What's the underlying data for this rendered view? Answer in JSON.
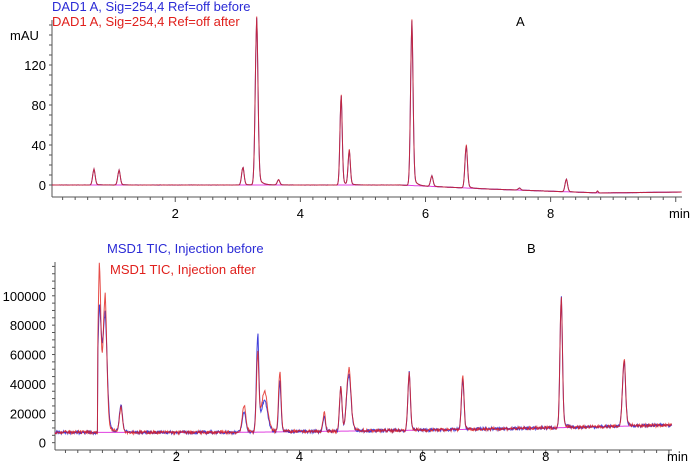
{
  "chart_data": [
    {
      "type": "line",
      "panel_label": "A",
      "ylabel": "mAU",
      "xlabel": "min",
      "xlim": [
        0.03,
        10.1
      ],
      "ylim": [
        -12,
        165
      ],
      "xticks": [
        "2",
        "4",
        "6",
        "8"
      ],
      "xtick_values": [
        2,
        4,
        6,
        8
      ],
      "yticks": [
        "0",
        "40",
        "80",
        "120"
      ],
      "ytick_values": [
        0,
        40,
        80,
        120
      ],
      "baseline": [
        [
          0,
          0
        ],
        [
          5.6,
          0
        ],
        [
          7,
          -4
        ],
        [
          8.8,
          -8
        ],
        [
          10.1,
          -7
        ]
      ],
      "series": [
        {
          "name": "DAD1 A, Sig=254,4 Ref=off before",
          "color": "#2b2bd6",
          "peaks": [
            [
              0.7,
              15,
              0.02
            ],
            [
              1.1,
              14,
              0.02
            ],
            [
              3.08,
              17,
              0.02
            ],
            [
              3.3,
              156,
              0.022
            ],
            [
              3.65,
              5,
              0.02
            ],
            [
              4.65,
              85,
              0.018
            ],
            [
              4.78,
              32,
              0.018
            ],
            [
              5.78,
              154,
              0.02
            ],
            [
              6.1,
              10,
              0.02
            ],
            [
              6.65,
              40,
              0.02
            ],
            [
              7.5,
              2,
              0.02
            ],
            [
              8.25,
              12,
              0.02
            ],
            [
              8.75,
              2,
              0.01
            ]
          ]
        },
        {
          "name": "DAD1 A, Sig=254,4 Ref=off after",
          "color": "#e0201c",
          "peaks": [
            [
              0.7,
              15,
              0.02
            ],
            [
              1.1,
              14,
              0.02
            ],
            [
              3.08,
              17,
              0.02
            ],
            [
              3.3,
              157,
              0.022
            ],
            [
              3.65,
              5,
              0.02
            ],
            [
              4.65,
              86,
              0.018
            ],
            [
              4.78,
              33,
              0.018
            ],
            [
              5.78,
              155,
              0.02
            ],
            [
              6.1,
              10,
              0.02
            ],
            [
              6.65,
              41,
              0.02
            ],
            [
              7.5,
              2,
              0.02
            ],
            [
              8.25,
              12,
              0.02
            ],
            [
              8.75,
              2,
              0.01
            ]
          ]
        }
      ]
    },
    {
      "type": "line",
      "panel_label": "B",
      "ylabel": "",
      "xlabel": "min",
      "xlim": [
        0.03,
        10.05
      ],
      "ylim": [
        -5000,
        123000
      ],
      "xticks": [
        "2",
        "4",
        "6",
        "8"
      ],
      "xtick_values": [
        2,
        4,
        6,
        8
      ],
      "yticks": [
        "0",
        "20000",
        "40000",
        "60000",
        "80000",
        "100000"
      ],
      "ytick_values": [
        0,
        20000,
        40000,
        60000,
        80000,
        100000
      ],
      "baseline": [
        [
          0,
          7000
        ],
        [
          3,
          7000
        ],
        [
          6,
          8500
        ],
        [
          8,
          10000
        ],
        [
          10.05,
          12000
        ]
      ],
      "series": [
        {
          "name": "MSD1 TIC, Injection before",
          "color": "#2b2bd6",
          "peaks": [
            [
              0.75,
              78000,
              0.03
            ],
            [
              0.84,
              75000,
              0.035
            ],
            [
              1.1,
              17000,
              0.025
            ],
            [
              3.1,
              13000,
              0.03
            ],
            [
              3.32,
              63000,
              0.02
            ],
            [
              3.43,
              20000,
              0.05
            ],
            [
              3.68,
              33000,
              0.02
            ],
            [
              4.4,
              10000,
              0.02
            ],
            [
              4.67,
              28000,
              0.02
            ],
            [
              4.8,
              37000,
              0.035
            ],
            [
              5.78,
              37000,
              0.02
            ],
            [
              6.65,
              33000,
              0.02
            ],
            [
              8.25,
              84000,
              0.02
            ],
            [
              9.27,
              43000,
              0.025
            ]
          ]
        },
        {
          "name": "MSD1 TIC, Injection after",
          "color": "#e0201c",
          "peaks": [
            [
              0.75,
              106000,
              0.025
            ],
            [
              0.84,
              88000,
              0.03
            ],
            [
              1.1,
              16000,
              0.025
            ],
            [
              3.1,
              17000,
              0.03
            ],
            [
              3.32,
              51000,
              0.02
            ],
            [
              3.43,
              26000,
              0.05
            ],
            [
              3.68,
              40000,
              0.02
            ],
            [
              4.4,
              12000,
              0.02
            ],
            [
              4.67,
              29000,
              0.02
            ],
            [
              4.8,
              40000,
              0.035
            ],
            [
              5.78,
              38000,
              0.02
            ],
            [
              6.65,
              35000,
              0.02
            ],
            [
              8.25,
              85000,
              0.02
            ],
            [
              9.27,
              44000,
              0.025
            ]
          ]
        }
      ]
    }
  ]
}
